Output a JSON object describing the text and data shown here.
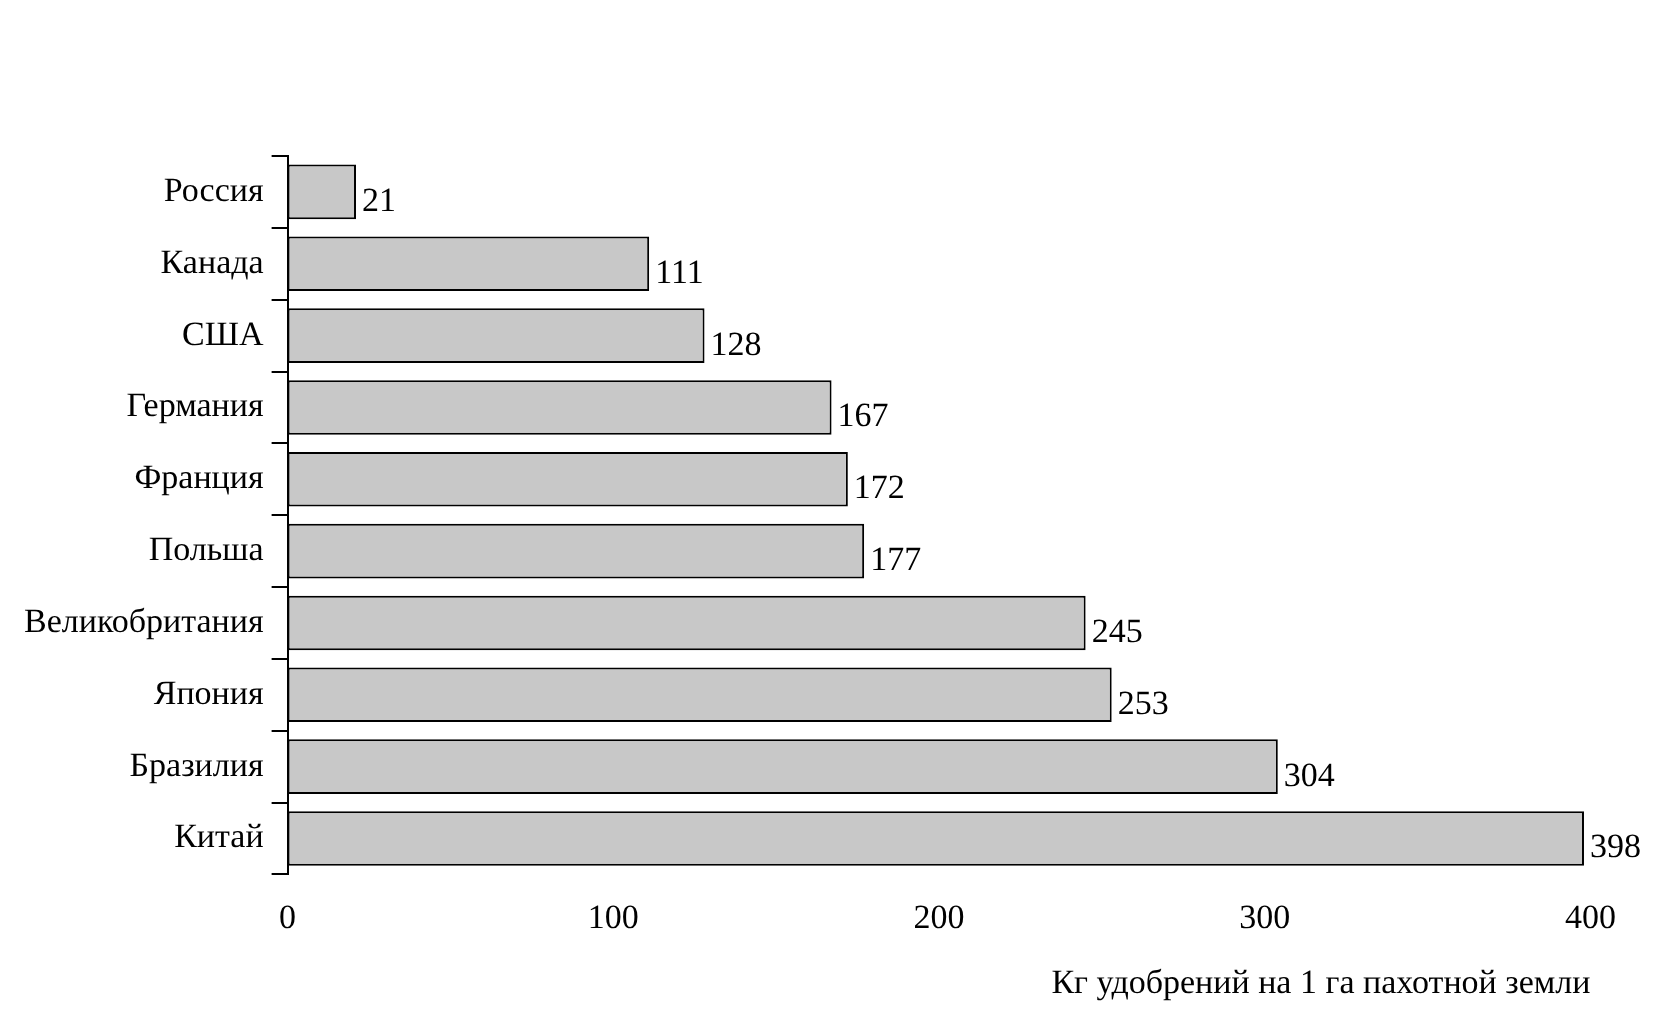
{
  "chart_data": {
    "type": "bar",
    "orientation": "horizontal",
    "categories": [
      "Россия",
      "Канада",
      "США",
      "Германия",
      "Франция",
      "Польша",
      "Великобритания",
      "Япония",
      "Бразилия",
      "Китай"
    ],
    "values": [
      21,
      111,
      128,
      167,
      172,
      177,
      245,
      253,
      304,
      398
    ],
    "color": "#c8c8c8",
    "data_labels": true,
    "xlim": [
      0,
      400
    ],
    "xticks": [
      0,
      100,
      200,
      300,
      400
    ],
    "xlabel": "Кг удобрений на 1 га пахотной земли"
  }
}
